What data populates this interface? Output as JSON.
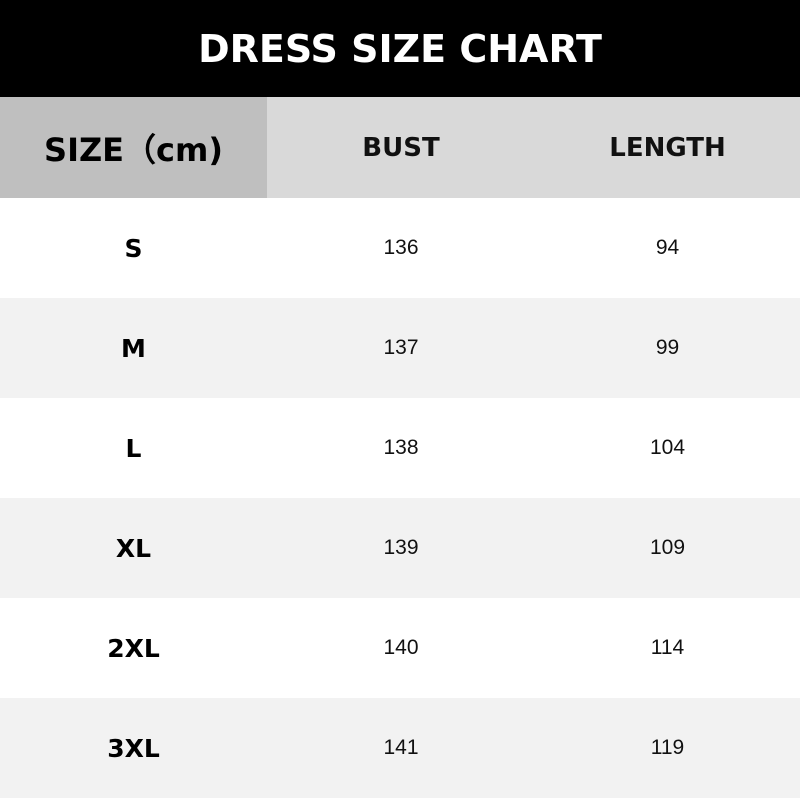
{
  "title": "DRESS SIZE CHART",
  "table": {
    "headers": [
      "SIZE（cm)",
      "BUST",
      "LENGTH"
    ],
    "rows": [
      {
        "size": "S",
        "bust": "136",
        "length": "94"
      },
      {
        "size": "M",
        "bust": "137",
        "length": "99"
      },
      {
        "size": "L",
        "bust": "138",
        "length": "104"
      },
      {
        "size": "XL",
        "bust": "139",
        "length": "109"
      },
      {
        "size": "2XL",
        "bust": "140",
        "length": "114"
      },
      {
        "size": "3XL",
        "bust": "141",
        "length": "119"
      }
    ]
  },
  "colors": {
    "title_bg": "#000000",
    "size_header_bg": "#bfbfbf",
    "header_bg": "#d9d9d9",
    "alt_row_bg": "#f2f2f2"
  }
}
